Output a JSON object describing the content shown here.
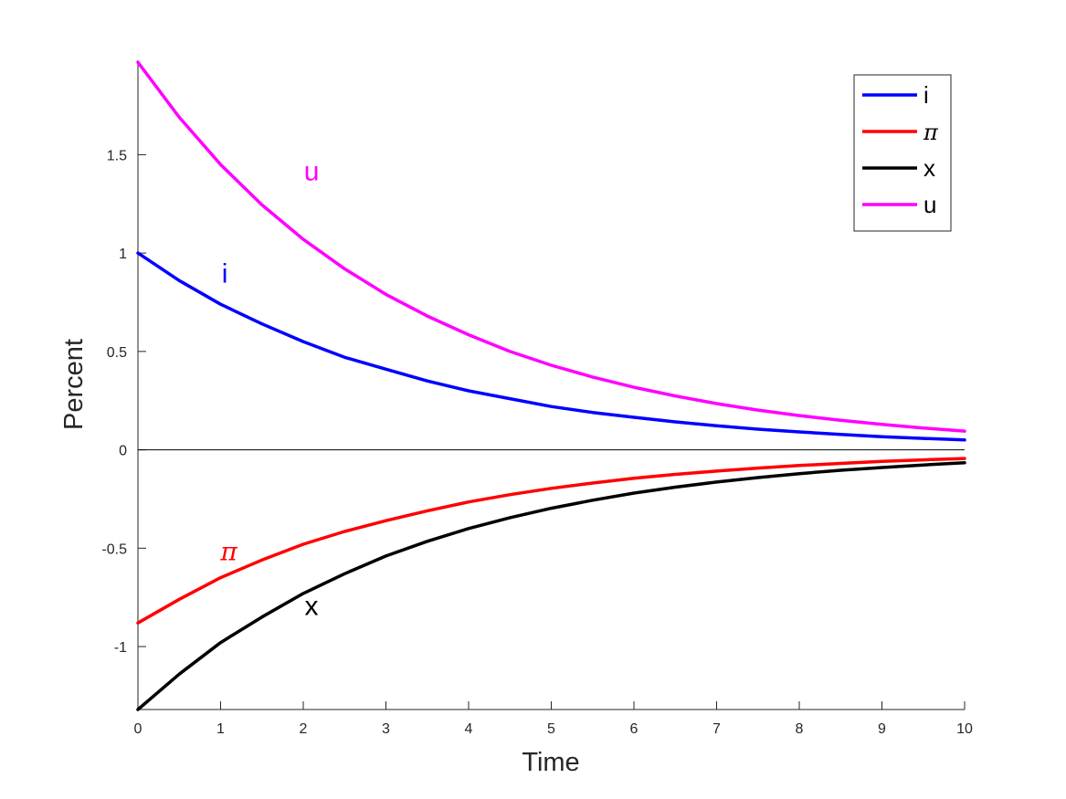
{
  "chart_data": {
    "type": "line",
    "xlabel": "Time",
    "ylabel": "Percent",
    "xlim": [
      0,
      10
    ],
    "ylim": [
      -1.32,
      1.98
    ],
    "xticks": [
      "0",
      "1",
      "2",
      "3",
      "4",
      "5",
      "6",
      "7",
      "8",
      "9",
      "10"
    ],
    "yticks": [
      "-1",
      "-0.5",
      "0",
      "0.5",
      "1",
      "1.5"
    ],
    "zero_line": true,
    "grid": false,
    "legend_placement": "top-right",
    "x": [
      0,
      0.5,
      1,
      1.5,
      2,
      2.5,
      3,
      3.5,
      4,
      4.5,
      5,
      5.5,
      6,
      6.5,
      7,
      7.5,
      8,
      8.5,
      9,
      9.5,
      10
    ],
    "series": [
      {
        "name": "i",
        "inline_label": "i",
        "color": "#0000ff",
        "values": [
          1.0,
          0.86,
          0.74,
          0.64,
          0.55,
          0.47,
          0.41,
          0.35,
          0.3,
          0.26,
          0.22,
          0.19,
          0.165,
          0.142,
          0.122,
          0.105,
          0.091,
          0.078,
          0.067,
          0.058,
          0.05
        ]
      },
      {
        "name": "π",
        "inline_label": "π",
        "color": "#ff0000",
        "values": [
          -0.88,
          -0.76,
          -0.65,
          -0.56,
          -0.48,
          -0.415,
          -0.36,
          -0.31,
          -0.265,
          -0.228,
          -0.196,
          -0.169,
          -0.145,
          -0.125,
          -0.108,
          -0.093,
          -0.08,
          -0.069,
          -0.059,
          -0.051,
          -0.044
        ]
      },
      {
        "name": "x",
        "inline_label": "x",
        "color": "#000000",
        "values": [
          -1.32,
          -1.14,
          -0.98,
          -0.85,
          -0.73,
          -0.63,
          -0.54,
          -0.465,
          -0.4,
          -0.345,
          -0.297,
          -0.256,
          -0.22,
          -0.19,
          -0.164,
          -0.141,
          -0.121,
          -0.104,
          -0.09,
          -0.077,
          -0.066
        ]
      },
      {
        "name": "u",
        "inline_label": "u",
        "color": "#ff00ff",
        "values": [
          1.97,
          1.69,
          1.45,
          1.245,
          1.07,
          0.92,
          0.79,
          0.68,
          0.585,
          0.5,
          0.43,
          0.37,
          0.318,
          0.274,
          0.235,
          0.202,
          0.174,
          0.15,
          0.129,
          0.111,
          0.095
        ]
      }
    ],
    "annotations": [
      {
        "text": "u",
        "x": 2.1,
        "y": 1.37,
        "color": "#ff00ff"
      },
      {
        "text": "i",
        "x": 1.05,
        "y": 0.85,
        "color": "#0000ff"
      },
      {
        "text": "π",
        "x": 1.1,
        "y": -0.56,
        "color": "#ff0000"
      },
      {
        "text": "x",
        "x": 2.1,
        "y": -0.84,
        "color": "#000000"
      }
    ]
  }
}
